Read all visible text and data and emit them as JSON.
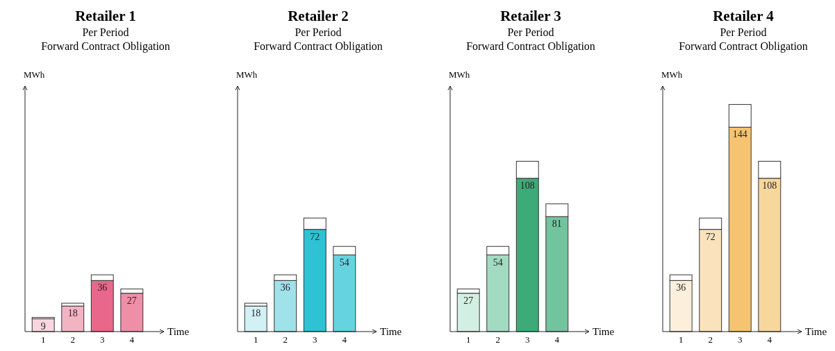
{
  "chart_data": [
    {
      "type": "bar",
      "title": "Retailer 1",
      "subtitle": "Per Period\nForward Contract Obligation",
      "xlabel": "Time",
      "ylabel": "MWh",
      "categories": [
        "1",
        "2",
        "3",
        "4"
      ],
      "stacked": true,
      "ylim": [
        0,
        173
      ],
      "tick_labels": "x",
      "series": [
        {
          "colors": [
            "#f9d6df",
            "#f4b3c3",
            "#e8678a",
            "#ef8fa7"
          ],
          "values": [
            9,
            18,
            36,
            27
          ],
          "value_labels": [
            "9",
            "18",
            "36",
            "27"
          ]
        },
        {
          "color": "#ffffff",
          "values": [
            1,
            2,
            4,
            3
          ]
        }
      ]
    },
    {
      "type": "bar",
      "title": "Retailer 2",
      "subtitle": "Per Period\nForward Contract Obligation",
      "xlabel": "Time",
      "ylabel": "MWh",
      "categories": [
        "1",
        "2",
        "3",
        "4"
      ],
      "stacked": true,
      "ylim": [
        0,
        173
      ],
      "tick_labels": "x",
      "series": [
        {
          "colors": [
            "#d2f1f5",
            "#9fe2ea",
            "#2fc1d4",
            "#66d3e0"
          ],
          "values": [
            18,
            36,
            72,
            54
          ],
          "value_labels": [
            "18",
            "36",
            "72",
            "54"
          ]
        },
        {
          "color": "#ffffff",
          "values": [
            2,
            4,
            8,
            6
          ]
        }
      ]
    },
    {
      "type": "bar",
      "title": "Retailer 3",
      "subtitle": "Per Period\nForward Contract Obligation",
      "xlabel": "Time",
      "ylabel": "MWh",
      "categories": [
        "1",
        "2",
        "3",
        "4"
      ],
      "stacked": true,
      "ylim": [
        0,
        173
      ],
      "tick_labels": "x",
      "series": [
        {
          "colors": [
            "#d3efe3",
            "#a2dbc2",
            "#3dab78",
            "#72c49e"
          ],
          "values": [
            27,
            54,
            108,
            81
          ],
          "value_labels": [
            "27",
            "54",
            "108",
            "81"
          ]
        },
        {
          "color": "#ffffff",
          "values": [
            3,
            6,
            12,
            9
          ]
        }
      ]
    },
    {
      "type": "bar",
      "title": "Retailer 4",
      "subtitle": "Per Period\nForward Contract Obligation",
      "xlabel": "Time",
      "ylabel": "MWh",
      "categories": [
        "1",
        "2",
        "3",
        "4"
      ],
      "stacked": true,
      "ylim": [
        0,
        173
      ],
      "tick_labels": "x",
      "series": [
        {
          "colors": [
            "#fcf0dd",
            "#fae2bc",
            "#f5c371",
            "#f8d79d"
          ],
          "values": [
            36,
            72,
            144,
            108
          ],
          "value_labels": [
            "36",
            "72",
            "144",
            "108"
          ]
        },
        {
          "color": "#ffffff",
          "values": [
            4,
            8,
            16,
            12
          ]
        }
      ]
    }
  ]
}
